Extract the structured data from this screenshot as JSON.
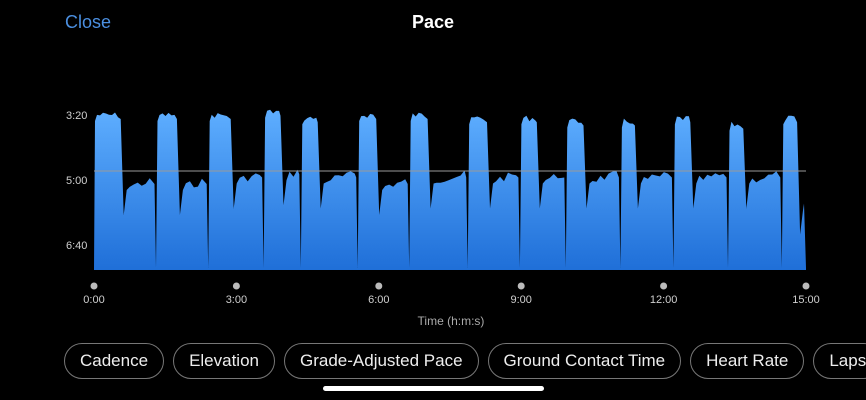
{
  "header": {
    "close_label": "Close",
    "title": "Pace"
  },
  "chips": [
    "Cadence",
    "Elevation",
    "Grade-Adjusted Pace",
    "Ground Contact Time",
    "Heart Rate",
    "Laps"
  ],
  "colors": {
    "accent": "#4b8fe0",
    "fill_top": "#5eaeff",
    "fill_bottom": "#1f6fd8",
    "avg_line": "#9a9a9a"
  },
  "chart_data": {
    "type": "area",
    "xlabel": "Time (h:m:s)",
    "x_ticks": [
      "0:00",
      "3:00",
      "6:00",
      "9:00",
      "12:00",
      "15:00"
    ],
    "y_ticks": [
      "3:20",
      "5:00",
      "6:40"
    ],
    "x_range_seconds": [
      0,
      900
    ],
    "y_range_seconds_per_km": [
      160,
      450
    ],
    "y_inverted": true,
    "average_pace_seconds": 280,
    "intervals": [
      {
        "fast_start": 0,
        "fast_end": 35,
        "fast_pace": 200,
        "rec_end": 79,
        "rec_pace": 300
      },
      {
        "fast_start": 79,
        "fast_end": 106,
        "fast_pace": 200,
        "rec_end": 145,
        "rec_pace": 300
      },
      {
        "fast_start": 145,
        "fast_end": 174,
        "fast_pace": 200,
        "rec_end": 215,
        "rec_pace": 290
      },
      {
        "fast_start": 215,
        "fast_end": 237,
        "fast_pace": 195,
        "rec_end": 262,
        "rec_pace": 285
      },
      {
        "fast_start": 262,
        "fast_end": 284,
        "fast_pace": 205,
        "rec_end": 334,
        "rec_pace": 290
      },
      {
        "fast_start": 334,
        "fast_end": 358,
        "fast_pace": 200,
        "rec_end": 399,
        "rec_pace": 300
      },
      {
        "fast_start": 399,
        "fast_end": 423,
        "fast_pace": 200,
        "rec_end": 473,
        "rec_pace": 290
      },
      {
        "fast_start": 473,
        "fast_end": 498,
        "fast_pace": 205,
        "rec_end": 539,
        "rec_pace": 290
      },
      {
        "fast_start": 539,
        "fast_end": 561,
        "fast_pace": 205,
        "rec_end": 597,
        "rec_pace": 290
      },
      {
        "fast_start": 597,
        "fast_end": 620,
        "fast_pace": 210,
        "rec_end": 666,
        "rec_pace": 290
      },
      {
        "fast_start": 666,
        "fast_end": 685,
        "fast_pace": 210,
        "rec_end": 733,
        "rec_pace": 290
      },
      {
        "fast_start": 733,
        "fast_end": 755,
        "fast_pace": 205,
        "rec_end": 802,
        "rec_pace": 290
      },
      {
        "fast_start": 802,
        "fast_end": 822,
        "fast_pace": 215,
        "rec_end": 870,
        "rec_pace": 290
      },
      {
        "fast_start": 870,
        "fast_end": 890,
        "fast_pace": 205,
        "rec_end": 900,
        "rec_pace": 330
      }
    ]
  }
}
